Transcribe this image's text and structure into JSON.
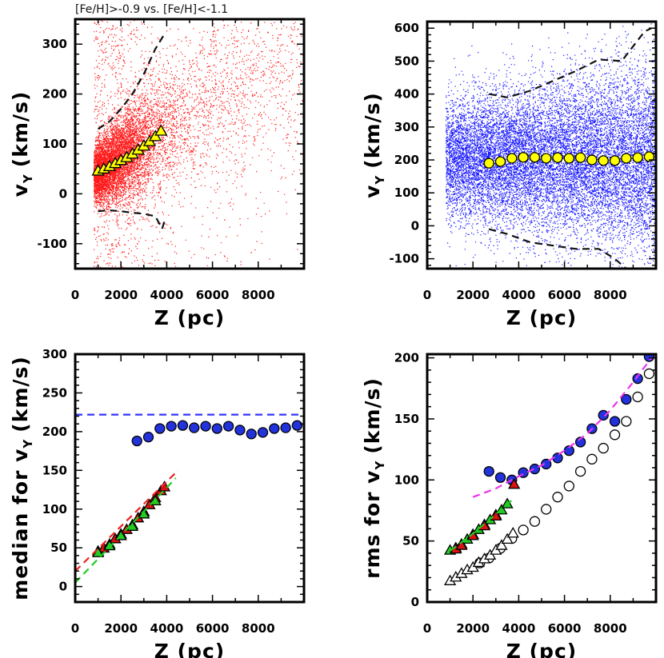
{
  "caption": "[Fe/H]>-0.9 vs. [Fe/H]<-1.1",
  "colors": {
    "metal_rich": "#ff1a1a",
    "metal_poor": "#1a1aff",
    "triangle_fill": "#ffff00",
    "circle_fill": "#ffff00",
    "blue_points": "#2233dd",
    "red_triangle": "#dd1111",
    "green_dash": "#22cc22",
    "red_dash": "#ee2222",
    "blue_dash": "#3333ff",
    "magenta_dash": "#ee33ee"
  },
  "chart_data": [
    {
      "id": "top-left",
      "type": "scatter",
      "title": "",
      "xlabel": "Z (pc)",
      "ylabel_main": "v",
      "ylabel_sub": "Y",
      "ylabel_tail": "(km/s)",
      "xlim": [
        0,
        10000
      ],
      "ylim": [
        -150,
        350
      ],
      "xticks": [
        0,
        2000,
        4000,
        6000,
        8000
      ],
      "yticks": [
        -100,
        0,
        100,
        200,
        300
      ],
      "scatter_cloud": {
        "description_color": "red",
        "x_center_pc": 2000
      },
      "series": [
        {
          "name": "median (yellow triangles)",
          "marker": "triangle",
          "x": [
            1000,
            1250,
            1500,
            1750,
            2000,
            2250,
            2500,
            2750,
            3000,
            3250,
            3500,
            3750
          ],
          "y": [
            45,
            49,
            54,
            60,
            66,
            72,
            79,
            87,
            95,
            104,
            114,
            125
          ]
        },
        {
          "name": "upper dispersion envelope",
          "style": "dashed",
          "x": [
            1000,
            1500,
            2000,
            2500,
            3000,
            3500,
            3900
          ],
          "y": [
            130,
            145,
            170,
            200,
            240,
            290,
            320
          ]
        },
        {
          "name": "lower dispersion envelope",
          "style": "dashed",
          "x": [
            1000,
            1500,
            2000,
            2500,
            3000,
            3500,
            3800,
            3900
          ],
          "y": [
            -35,
            -33,
            -35,
            -38,
            -40,
            -45,
            -70,
            -55
          ]
        }
      ]
    },
    {
      "id": "top-right",
      "type": "scatter",
      "title": "",
      "xlabel": "Z (pc)",
      "ylabel_main": "v",
      "ylabel_sub": "Y",
      "ylabel_tail": "(km/s)",
      "xlim": [
        0,
        10000
      ],
      "ylim": [
        -130,
        620
      ],
      "xticks": [
        0,
        2000,
        4000,
        6000,
        8000
      ],
      "yticks": [
        -100,
        0,
        100,
        200,
        300,
        400,
        500,
        600
      ],
      "scatter_cloud": {
        "description_color": "blue",
        "x_center_pc": 5000
      },
      "series": [
        {
          "name": "median (yellow circles)",
          "marker": "circle",
          "x": [
            2700,
            3200,
            3700,
            4200,
            4700,
            5200,
            5700,
            6200,
            6700,
            7200,
            7700,
            8200,
            8700,
            9200,
            9700
          ],
          "y": [
            190,
            195,
            205,
            208,
            208,
            205,
            207,
            205,
            207,
            200,
            198,
            198,
            205,
            207,
            210
          ]
        },
        {
          "name": "upper dispersion envelope",
          "style": "dashed",
          "x": [
            2700,
            3500,
            4500,
            5500,
            6500,
            7500,
            8500,
            9500,
            9800
          ],
          "y": [
            400,
            390,
            410,
            440,
            470,
            505,
            500,
            590,
            600
          ]
        },
        {
          "name": "lower dispersion envelope",
          "style": "dashed",
          "x": [
            2700,
            3500,
            4500,
            5500,
            6500,
            7500,
            8200,
            8700
          ],
          "y": [
            -10,
            -25,
            -50,
            -60,
            -70,
            -70,
            -100,
            -130
          ]
        }
      ]
    },
    {
      "id": "bottom-left",
      "type": "scatter",
      "title": "",
      "xlabel": "Z (pc)",
      "ylabel_main": "median for v",
      "ylabel_sub": "Y",
      "ylabel_tail": "(km/s)",
      "xlim": [
        0,
        10000
      ],
      "ylim": [
        -20,
        300
      ],
      "xticks": [
        0,
        2000,
        4000,
        6000,
        8000
      ],
      "yticks": [
        0,
        50,
        100,
        150,
        200,
        250,
        300
      ],
      "series": [
        {
          "name": "metal-poor median",
          "marker": "circle-blue",
          "x": [
            2700,
            3200,
            3700,
            4200,
            4700,
            5200,
            5700,
            6200,
            6700,
            7200,
            7700,
            8200,
            8700,
            9200,
            9700
          ],
          "y": [
            188,
            193,
            204,
            207,
            208,
            205,
            207,
            204,
            207,
            202,
            197,
            199,
            204,
            205,
            208
          ]
        },
        {
          "name": "metal-rich median",
          "marker": "triangle-red",
          "x": [
            1000,
            1250,
            1500,
            1750,
            2000,
            2250,
            2500,
            2750,
            3000,
            3250,
            3500,
            3750,
            3900
          ],
          "y": [
            45,
            49,
            54,
            61,
            67,
            73,
            79,
            88,
            96,
            105,
            114,
            123,
            128
          ]
        },
        {
          "name": "metal-rich median (green)",
          "marker": "triangle-green",
          "x": [
            1000,
            1500,
            2000,
            2500,
            3000,
            3500
          ],
          "y": [
            43,
            52,
            65,
            77,
            93,
            110
          ]
        },
        {
          "name": "horizontal reference",
          "style": "dashed-blue",
          "x": [
            0,
            10000
          ],
          "y": [
            222,
            222
          ]
        },
        {
          "name": "linear fit (red)",
          "style": "dashed-red",
          "x": [
            0,
            4500
          ],
          "y": [
            20,
            150
          ]
        },
        {
          "name": "linear fit (green)",
          "style": "dashed-green",
          "x": [
            0,
            4400
          ],
          "y": [
            5,
            140
          ]
        }
      ]
    },
    {
      "id": "bottom-right",
      "type": "scatter",
      "title": "",
      "xlabel": "Z (pc)",
      "ylabel_main": "rms for v",
      "ylabel_sub": "Y",
      "ylabel_tail": "(km/s)",
      "xlim": [
        0,
        10000
      ],
      "ylim": [
        0,
        203
      ],
      "xticks": [
        0,
        2000,
        4000,
        6000,
        8000
      ],
      "yticks": [
        0,
        50,
        100,
        150,
        200
      ],
      "series": [
        {
          "name": "metal-poor rms",
          "marker": "circle-blue",
          "x": [
            2700,
            3200,
            3700,
            4200,
            4700,
            5200,
            5700,
            6200,
            6700,
            7200,
            7700,
            8200,
            8700,
            9200,
            9700
          ],
          "y": [
            107,
            102,
            100,
            106,
            109,
            113,
            118,
            124,
            131,
            142,
            153,
            148,
            166,
            183,
            201
          ]
        },
        {
          "name": "metal-rich rms",
          "marker": "triangle-green",
          "x": [
            1000,
            1250,
            1500,
            1750,
            2000,
            2250,
            2500,
            2750,
            3000,
            3250,
            3500
          ],
          "y": [
            42,
            44,
            47,
            51,
            55,
            59,
            63,
            67,
            71,
            75,
            80
          ]
        },
        {
          "name": "metal-rich rms (red)",
          "marker": "triangle-red",
          "x": [
            1250,
            1500,
            2000,
            2500,
            3000,
            3800
          ],
          "y": [
            43,
            46,
            54,
            62,
            70,
            96
          ]
        },
        {
          "name": "hollow circles",
          "marker": "circle-open",
          "x": [
            2300,
            2700,
            3200,
            3700,
            4200,
            4700,
            5200,
            5700,
            6200,
            6700,
            7200,
            7700,
            8200,
            8700,
            9200,
            9700
          ],
          "y": [
            32,
            36,
            44,
            52,
            59,
            66,
            76,
            86,
            95,
            107,
            117,
            126,
            137,
            148,
            168,
            187
          ]
        },
        {
          "name": "hollow triangles",
          "marker": "triangle-open",
          "x": [
            1000,
            1250,
            1500,
            1750,
            2000,
            2250,
            2500,
            2750,
            3000,
            3250,
            3500,
            3750
          ],
          "y": [
            17,
            20,
            23,
            26,
            28,
            32,
            35,
            38,
            42,
            46,
            51,
            56
          ]
        },
        {
          "name": "fit (magenta)",
          "style": "dashed-magenta",
          "x": [
            2000,
            3000,
            4000,
            5000,
            6000,
            7000,
            8000,
            9000,
            9800
          ],
          "y": [
            86,
            93,
            103,
            112,
            124,
            138,
            157,
            180,
            200
          ]
        },
        {
          "name": "fit (green)",
          "style": "dashed-green",
          "x": [
            1000,
            2000,
            3000,
            3800
          ],
          "y": [
            42,
            56,
            72,
            85
          ]
        }
      ]
    }
  ]
}
